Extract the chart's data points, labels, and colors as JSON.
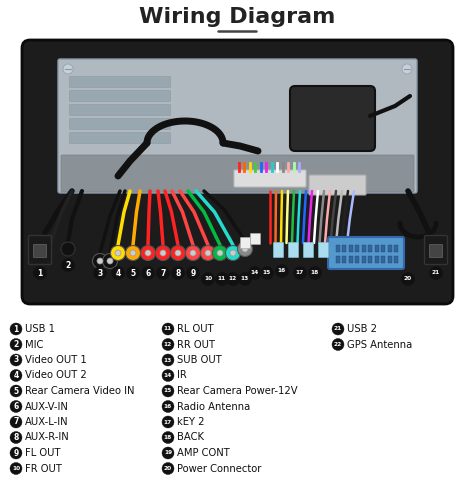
{
  "title": "Wiring Diagram",
  "title_fontsize": 16,
  "title_fontweight": "bold",
  "background_color": "#ffffff",
  "legend_col1": [
    {
      "num": "1",
      "label": "USB 1"
    },
    {
      "num": "2",
      "label": "MIC"
    },
    {
      "num": "3",
      "label": "Video OUT 1"
    },
    {
      "num": "4",
      "label": "Video OUT 2"
    },
    {
      "num": "5",
      "label": "Rear Camera Video IN"
    },
    {
      "num": "6",
      "label": "AUX-V-IN"
    },
    {
      "num": "7",
      "label": "AUX-L-IN"
    },
    {
      "num": "8",
      "label": "AUX-R-IN"
    },
    {
      "num": "9",
      "label": "FL OUT"
    },
    {
      "num": "10",
      "label": "FR OUT"
    }
  ],
  "legend_col2": [
    {
      "num": "11",
      "label": "RL OUT"
    },
    {
      "num": "12",
      "label": "RR OUT"
    },
    {
      "num": "13",
      "label": "SUB OUT"
    },
    {
      "num": "14",
      "label": "IR"
    },
    {
      "num": "15",
      "label": "Rear Camera Power-12V"
    },
    {
      "num": "16",
      "label": "Radio Antenna"
    },
    {
      "num": "17",
      "label": "kEY 2"
    },
    {
      "num": "18",
      "label": "BACK"
    },
    {
      "num": "19",
      "label": "AMP CONT"
    },
    {
      "num": "20",
      "label": "Power Connector"
    }
  ],
  "legend_col3": [
    {
      "num": "21",
      "label": "USB 2"
    },
    {
      "num": "22",
      "label": "GPS Antenna"
    }
  ],
  "fig_width": 4.74,
  "fig_height": 5.01,
  "dpi": 100
}
